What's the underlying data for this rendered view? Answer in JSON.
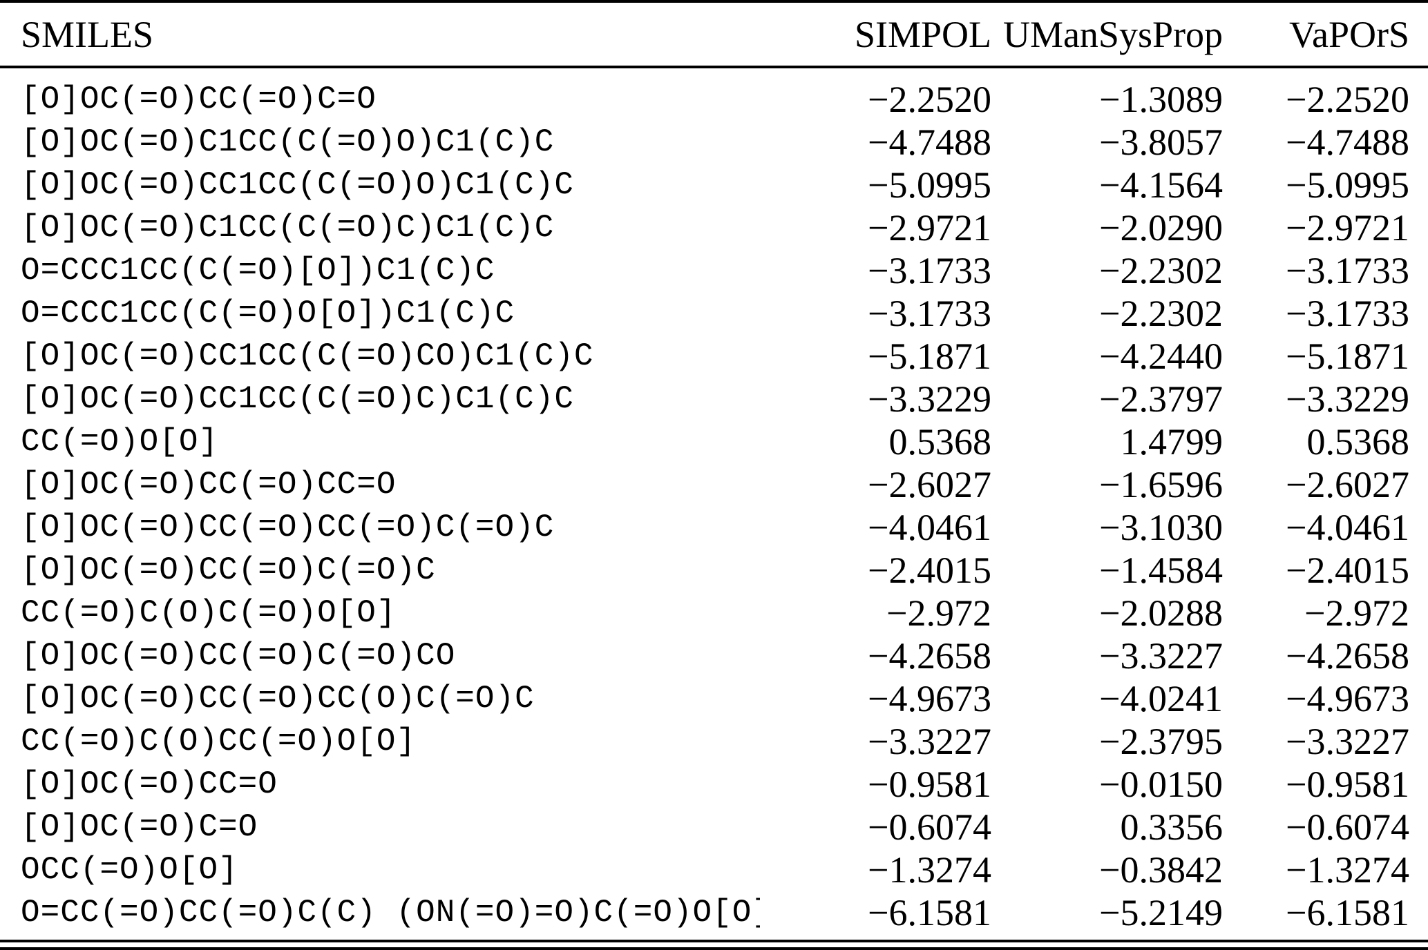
{
  "table": {
    "columns": [
      "SMILES",
      "SIMPOL",
      "UManSysProp",
      "VaPOrS"
    ],
    "rows": [
      {
        "smiles": "[O]OC(=O)CC(=O)C=O",
        "simpol": "−2.2520",
        "umansysprop": "−1.3089",
        "vapors": "−2.2520"
      },
      {
        "smiles": "[O]OC(=O)C1CC(C(=O)O)C1(C)C",
        "simpol": "−4.7488",
        "umansysprop": "−3.8057",
        "vapors": "−4.7488"
      },
      {
        "smiles": "[O]OC(=O)CC1CC(C(=O)O)C1(C)C",
        "simpol": "−5.0995",
        "umansysprop": "−4.1564",
        "vapors": "−5.0995"
      },
      {
        "smiles": "[O]OC(=O)C1CC(C(=O)C)C1(C)C",
        "simpol": "−2.9721",
        "umansysprop": "−2.0290",
        "vapors": "−2.9721"
      },
      {
        "smiles": "O=CCC1CC(C(=O)[O])C1(C)C",
        "simpol": "−3.1733",
        "umansysprop": "−2.2302",
        "vapors": "−3.1733"
      },
      {
        "smiles": "O=CCC1CC(C(=O)O[O])C1(C)C",
        "simpol": "−3.1733",
        "umansysprop": "−2.2302",
        "vapors": "−3.1733"
      },
      {
        "smiles": "[O]OC(=O)CC1CC(C(=O)CO)C1(C)C",
        "simpol": "−5.1871",
        "umansysprop": "−4.2440",
        "vapors": "−5.1871"
      },
      {
        "smiles": "[O]OC(=O)CC1CC(C(=O)C)C1(C)C",
        "simpol": "−3.3229",
        "umansysprop": "−2.3797",
        "vapors": "−3.3229"
      },
      {
        "smiles": "CC(=O)O[O]",
        "simpol": "0.5368",
        "umansysprop": "1.4799",
        "vapors": "0.5368"
      },
      {
        "smiles": "[O]OC(=O)CC(=O)CC=O",
        "simpol": "−2.6027",
        "umansysprop": "−1.6596",
        "vapors": "−2.6027"
      },
      {
        "smiles": "[O]OC(=O)CC(=O)CC(=O)C(=O)C",
        "simpol": "−4.0461",
        "umansysprop": "−3.1030",
        "vapors": "−4.0461"
      },
      {
        "smiles": "[O]OC(=O)CC(=O)C(=O)C",
        "simpol": "−2.4015",
        "umansysprop": "−1.4584",
        "vapors": "−2.4015"
      },
      {
        "smiles": "CC(=O)C(O)C(=O)O[O]",
        "simpol": "−2.972",
        "umansysprop": "−2.0288",
        "vapors": "−2.972"
      },
      {
        "smiles": "[O]OC(=O)CC(=O)C(=O)CO",
        "simpol": "−4.2658",
        "umansysprop": "−3.3227",
        "vapors": "−4.2658"
      },
      {
        "smiles": "[O]OC(=O)CC(=O)CC(O)C(=O)C",
        "simpol": "−4.9673",
        "umansysprop": "−4.0241",
        "vapors": "−4.9673"
      },
      {
        "smiles": "CC(=O)C(O)CC(=O)O[O]",
        "simpol": "−3.3227",
        "umansysprop": "−2.3795",
        "vapors": "−3.3227"
      },
      {
        "smiles": "[O]OC(=O)CC=O",
        "simpol": "−0.9581",
        "umansysprop": "−0.0150",
        "vapors": "−0.9581"
      },
      {
        "smiles": "[O]OC(=O)C=O",
        "simpol": "−0.6074",
        "umansysprop": "0.3356",
        "vapors": "−0.6074"
      },
      {
        "smiles": "OCC(=O)O[O]",
        "simpol": "−1.3274",
        "umansysprop": "−0.3842",
        "vapors": "−1.3274"
      },
      {
        "smiles": "O=CC(=O)CC(=O)C(C) (ON(=O)=O)C(=O)O[O]",
        "simpol": "−6.1581",
        "umansysprop": "−5.2149",
        "vapors": "−6.1581"
      }
    ]
  }
}
